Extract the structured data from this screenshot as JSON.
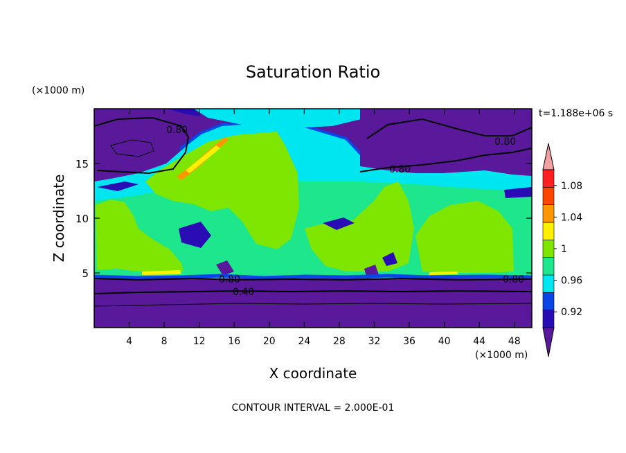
{
  "chart_data": {
    "type": "heatmap",
    "title": "Saturation Ratio",
    "xlabel": "X coordinate",
    "ylabel": "Z coordinate",
    "x_unit": "(×1000 m)",
    "z_unit": "(×1000 m)",
    "time_label": "t=1.188e+06 s",
    "footer": "CONTOUR INTERVAL = 2.000E-01",
    "xlim": [
      0,
      50
    ],
    "ylim": [
      0,
      20
    ],
    "x_ticks": [
      4,
      8,
      12,
      16,
      20,
      24,
      28,
      32,
      36,
      40,
      44,
      48
    ],
    "y_ticks": [
      5,
      10,
      15
    ],
    "colorbar": {
      "levels": [
        0.9,
        0.92,
        0.94,
        0.96,
        0.98,
        1.0,
        1.02,
        1.04,
        1.06,
        1.08,
        1.1
      ],
      "tick_labels": [
        "0.92",
        "0.96",
        "1",
        "1.04",
        "1.08"
      ],
      "colors": [
        "#5a189a",
        "#2a0cb4",
        "#0a46e6",
        "#00e6f0",
        "#1ee68c",
        "#7ee600",
        "#fff000",
        "#ff9600",
        "#ff4600",
        "#ff2020",
        "#f0a0a0"
      ]
    },
    "contour_labels": [
      "0.80",
      "0.80",
      "0.80",
      "0.80",
      "0.40"
    ],
    "colors": {
      "undersat": "#5a189a",
      "sat_green": "#1ee68c",
      "supersat_lime": "#7ee600",
      "cyan": "#00e6f0",
      "blue": "#0a46e6",
      "navy": "#2a0cb4",
      "yellow": "#fff000",
      "orange": "#ff9600",
      "red": "#ff4600"
    }
  }
}
